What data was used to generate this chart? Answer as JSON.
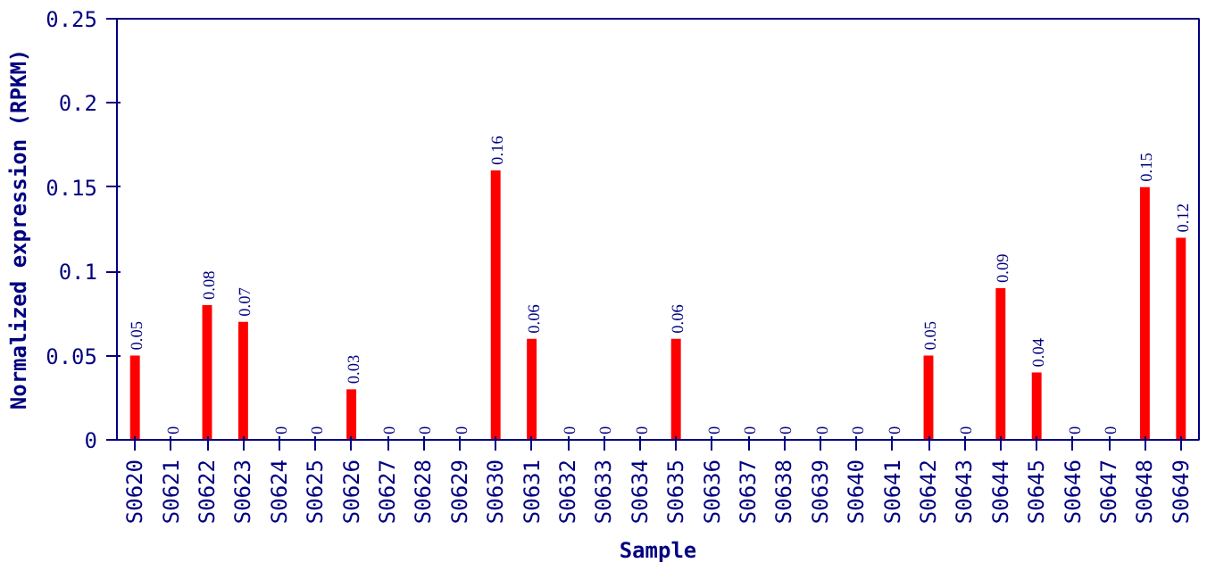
{
  "chart_data": {
    "type": "bar",
    "xlabel": "Sample",
    "ylabel": "Normalized expression (RPKM)",
    "categories": [
      "S0620",
      "S0621",
      "S0622",
      "S0623",
      "S0624",
      "S0625",
      "S0626",
      "S0627",
      "S0628",
      "S0629",
      "S0630",
      "S0631",
      "S0632",
      "S0633",
      "S0634",
      "S0635",
      "S0636",
      "S0637",
      "S0638",
      "S0639",
      "S0640",
      "S0641",
      "S0642",
      "S0643",
      "S0644",
      "S0645",
      "S0646",
      "S0647",
      "S0648",
      "S0649"
    ],
    "values": [
      0.05,
      0,
      0.08,
      0.07,
      0,
      0,
      0.03,
      0,
      0,
      0,
      0.16,
      0.06,
      0,
      0,
      0,
      0.06,
      0,
      0,
      0,
      0,
      0,
      0,
      0.05,
      0,
      0.09,
      0.04,
      0,
      0,
      0.15,
      0.12
    ],
    "color": "#ff0000",
    "ylim": [
      0,
      0.25
    ],
    "yticks": [
      0,
      0.05,
      0.1,
      0.15,
      0.2,
      0.25
    ],
    "grid": false,
    "data_labels": true
  }
}
